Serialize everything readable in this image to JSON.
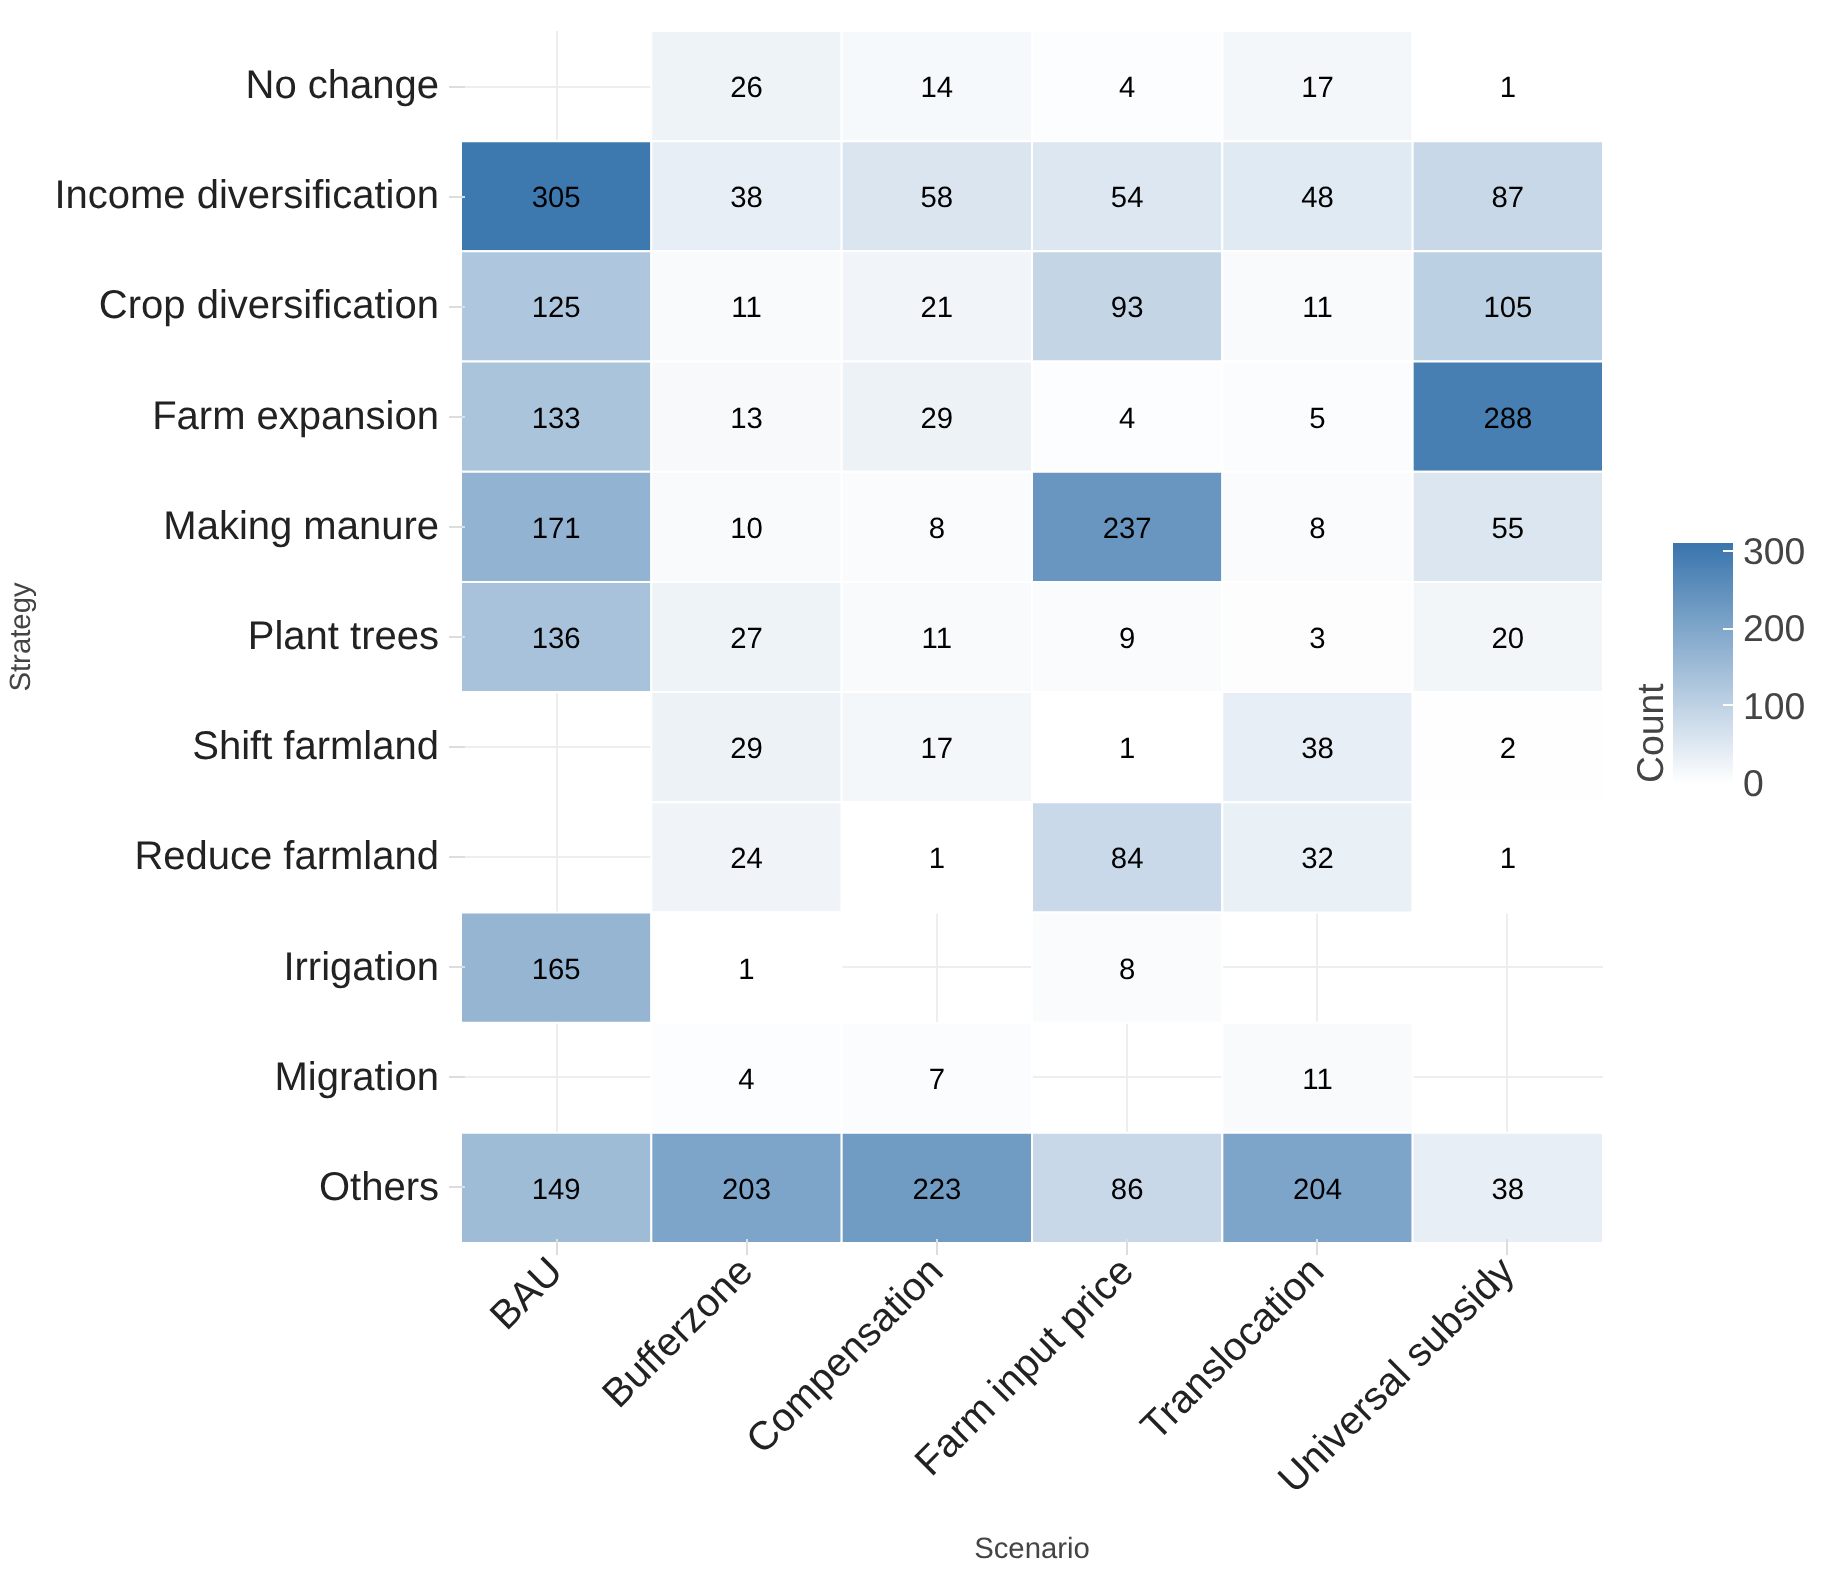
{
  "chart_data": {
    "type": "heatmap",
    "xlabel": "Scenario",
    "ylabel": "Strategy",
    "clabel": "Count",
    "categories": [
      "BAU",
      "Bufferzone",
      "Compensation",
      "Farm input price",
      "Translocation",
      "Universal subsidy"
    ],
    "y_categories": [
      "No change",
      "Income diversification",
      "Crop diversification",
      "Farm expansion",
      "Making manure",
      "Plant trees",
      "Shift farmland",
      "Reduce farmland",
      "Irrigation",
      "Migration",
      "Others"
    ],
    "cells": [
      [
        null,
        26,
        14,
        4,
        17,
        1
      ],
      [
        305,
        38,
        58,
        54,
        48,
        87
      ],
      [
        125,
        11,
        21,
        93,
        11,
        105
      ],
      [
        133,
        13,
        29,
        4,
        5,
        288
      ],
      [
        171,
        10,
        8,
        237,
        8,
        55
      ],
      [
        136,
        27,
        11,
        9,
        3,
        20
      ],
      [
        null,
        29,
        17,
        1,
        38,
        2
      ],
      [
        null,
        24,
        1,
        84,
        32,
        1
      ],
      [
        165,
        1,
        null,
        8,
        null,
        null
      ],
      [
        null,
        4,
        7,
        null,
        11,
        null
      ],
      [
        149,
        203,
        223,
        86,
        204,
        38
      ]
    ],
    "clim": [
      0,
      310
    ],
    "cticks": [
      0,
      100,
      200,
      300
    ],
    "data_labels": true,
    "grid": true
  }
}
